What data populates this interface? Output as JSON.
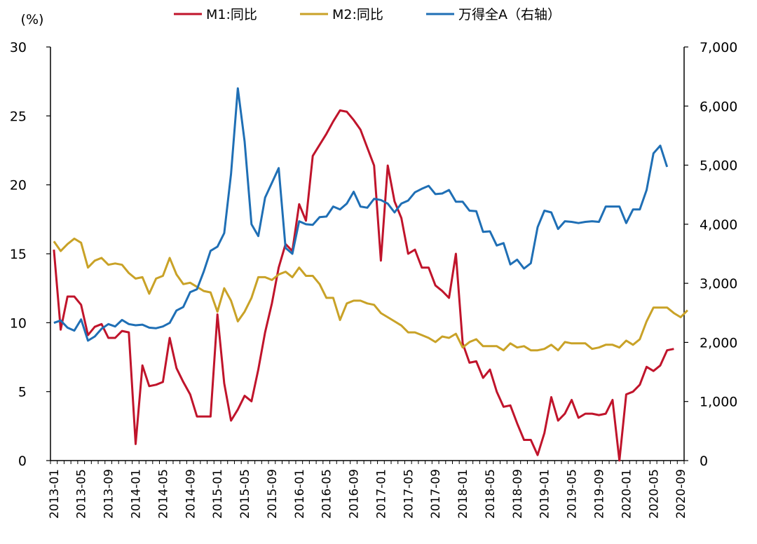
{
  "chart_data": {
    "type": "line",
    "title": "",
    "y_left": {
      "unit_label": "(%)",
      "range": [
        0,
        30
      ],
      "ticks": [
        "0",
        "5",
        "10",
        "15",
        "20",
        "25",
        "30"
      ]
    },
    "y_right": {
      "range": [
        0,
        7000
      ],
      "ticks": [
        "0",
        "1,000",
        "2,000",
        "3,000",
        "4,000",
        "5,000",
        "6,000",
        "7,000"
      ]
    },
    "x_ticks": [
      "2013-01",
      "2013-05",
      "2013-09",
      "2014-01",
      "2014-05",
      "2014-09",
      "2015-01",
      "2015-05",
      "2015-09",
      "2016-01",
      "2016-05",
      "2016-09",
      "2017-01",
      "2017-05",
      "2017-09",
      "2018-01",
      "2018-05",
      "2018-09",
      "2019-01",
      "2019-05",
      "2019-09",
      "2020-01",
      "2020-05",
      "2020-09"
    ],
    "x_start": "2013-01",
    "legend": "top",
    "grid": false,
    "series": [
      {
        "name": "M1:同比",
        "axis": "left",
        "color": "#C0142B",
        "values": [
          15.3,
          9.5,
          11.9,
          11.9,
          11.3,
          9.1,
          9.7,
          9.9,
          8.9,
          8.9,
          9.4,
          9.3,
          1.2,
          6.9,
          5.4,
          5.5,
          5.7,
          8.9,
          6.7,
          5.7,
          4.8,
          3.2,
          3.2,
          3.2,
          10.6,
          5.6,
          2.9,
          3.7,
          4.7,
          4.3,
          6.6,
          9.3,
          11.4,
          14.0,
          15.7,
          15.2,
          18.6,
          17.4,
          22.1,
          22.9,
          23.7,
          24.6,
          25.4,
          25.3,
          24.7,
          24.0,
          22.7,
          21.4,
          14.5,
          21.4,
          18.8,
          17.6,
          15.0,
          15.3,
          14.0,
          14.0,
          12.7,
          12.3,
          11.8,
          15.0,
          8.5,
          7.1,
          7.2,
          6.0,
          6.6,
          5.0,
          3.9,
          4.0,
          2.7,
          1.5,
          1.5,
          0.4,
          2.0,
          4.6,
          2.9,
          3.4,
          4.4,
          3.1,
          3.4,
          3.4,
          3.3,
          3.4,
          4.4,
          0.0,
          4.8,
          5.0,
          5.5,
          6.8,
          6.5,
          6.9,
          8.0,
          8.1
        ]
      },
      {
        "name": "M2:同比",
        "axis": "left",
        "color": "#C9A227",
        "values": [
          15.9,
          15.2,
          15.7,
          16.1,
          15.8,
          14.0,
          14.5,
          14.7,
          14.2,
          14.3,
          14.2,
          13.6,
          13.2,
          13.3,
          12.1,
          13.2,
          13.4,
          14.7,
          13.5,
          12.8,
          12.9,
          12.6,
          12.3,
          12.2,
          10.8,
          12.5,
          11.6,
          10.1,
          10.8,
          11.8,
          13.3,
          13.3,
          13.1,
          13.5,
          13.7,
          13.3,
          14.0,
          13.4,
          13.4,
          12.8,
          11.8,
          11.8,
          10.2,
          11.4,
          11.6,
          11.6,
          11.4,
          11.3,
          10.7,
          10.4,
          10.1,
          9.8,
          9.3,
          9.3,
          9.1,
          8.9,
          8.6,
          9.0,
          8.9,
          9.2,
          8.2,
          8.6,
          8.8,
          8.3,
          8.3,
          8.3,
          8.0,
          8.5,
          8.2,
          8.3,
          8.0,
          8.0,
          8.1,
          8.4,
          8.0,
          8.6,
          8.5,
          8.5,
          8.5,
          8.1,
          8.2,
          8.4,
          8.4,
          8.2,
          8.7,
          8.4,
          8.8,
          10.1,
          11.1,
          11.1,
          11.1,
          10.7,
          10.4,
          10.9
        ]
      },
      {
        "name": "万得全A（右轴）",
        "axis": "right",
        "color": "#1F6FB5",
        "values": [
          2330,
          2370,
          2250,
          2200,
          2390,
          2030,
          2100,
          2230,
          2310,
          2270,
          2380,
          2310,
          2290,
          2300,
          2250,
          2240,
          2270,
          2330,
          2540,
          2600,
          2850,
          2900,
          3200,
          3550,
          3620,
          3850,
          4850,
          6300,
          5400,
          4000,
          3800,
          4450,
          4700,
          4950,
          3600,
          3500,
          4050,
          4000,
          3990,
          4120,
          4130,
          4300,
          4250,
          4350,
          4550,
          4300,
          4280,
          4430,
          4410,
          4350,
          4200,
          4350,
          4400,
          4540,
          4600,
          4650,
          4510,
          4520,
          4580,
          4380,
          4380,
          4230,
          4220,
          3870,
          3880,
          3640,
          3680,
          3320,
          3400,
          3250,
          3340,
          3950,
          4230,
          4200,
          3920,
          4050,
          4040,
          4020,
          4040,
          4050,
          4040,
          4300,
          4300,
          4300,
          4020,
          4250,
          4250,
          4580,
          5200,
          5330,
          4970
        ]
      }
    ]
  }
}
